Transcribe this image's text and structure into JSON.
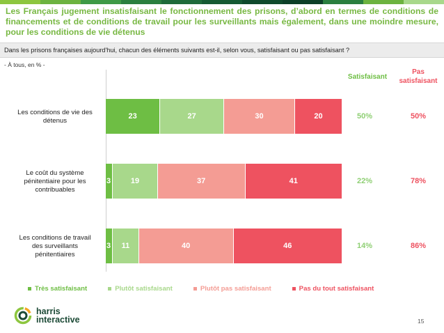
{
  "headline": "Les Français jugement insatisfaisant le fonctionnement des prisons, d’abord en termes de conditions de financements et de conditions de travail pour les surveillants mais également, dans une moindre mesure, pour les conditions de vie détenus",
  "question": "Dans les prisons françaises aujourd'hui, chacun des éléments suivants est-il, selon vous, satisfaisant ou pas satisfaisant ?",
  "base": "- À tous, en % -",
  "column_headers": {
    "satisfaisant": "Satisfaisant",
    "pas_satisfaisant_line1": "Pas",
    "pas_satisfaisant_line2": "satisfaisant"
  },
  "colors": {
    "tres_satisfaisant": "#6ebe44",
    "plutot_satisfaisant": "#a8d88b",
    "plutot_pas_satisfaisant": "#f49c94",
    "pas_du_tout_satisfaisant": "#ee5260",
    "topbar": [
      "#8dc63f",
      "#6cb33f",
      "#3e9a46",
      "#2a7f3f",
      "#1e6b3a",
      "#155a33",
      "#0f4a2c",
      "#0c3f28",
      "#2a7f3f",
      "#6cb33f",
      "#a8d88b"
    ]
  },
  "chart_data": {
    "type": "bar",
    "orientation": "horizontal",
    "stacked": true,
    "xlim": [
      0,
      100
    ],
    "categories": [
      [
        "Les conditions de vie des",
        "détenus"
      ],
      [
        "Le coût du système",
        "pénitentiaire pour les",
        "contribuables"
      ],
      [
        "Les conditions de travail",
        "des surveillants",
        "pénitentiaires"
      ]
    ],
    "series": [
      {
        "name": "Très satisfaisant",
        "values": [
          23,
          3,
          3
        ]
      },
      {
        "name": "Plutôt satisfaisant",
        "values": [
          27,
          19,
          11
        ]
      },
      {
        "name": "Plutôt pas satisfaisant",
        "values": [
          30,
          37,
          40
        ]
      },
      {
        "name": "Pas du tout satisfaisant",
        "values": [
          20,
          41,
          46
        ]
      }
    ],
    "totals_satisfaisant": [
      "50%",
      "22%",
      "14%"
    ],
    "totals_pas_satisfaisant": [
      "50%",
      "78%",
      "86%"
    ],
    "legend_position": "bottom"
  },
  "logo": {
    "line1": "harris",
    "line2": "interactive"
  },
  "page_number": "15"
}
